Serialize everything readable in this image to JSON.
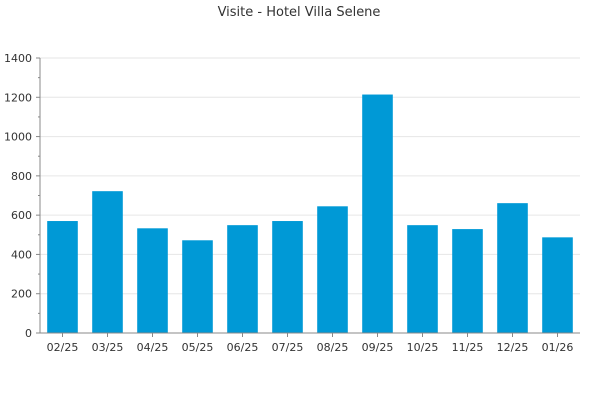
{
  "chart_data": {
    "type": "bar",
    "title": "Visite - Hotel Villa Selene",
    "xlabel": "",
    "ylabel": "",
    "categories": [
      "02/25",
      "03/25",
      "04/25",
      "05/25",
      "06/25",
      "07/25",
      "08/25",
      "09/25",
      "10/25",
      "11/25",
      "12/25",
      "01/26"
    ],
    "values": [
      570,
      722,
      533,
      472,
      549,
      570,
      645,
      1214,
      549,
      529,
      661,
      487
    ],
    "ylim": [
      0,
      1400
    ],
    "yticks": [
      0,
      200,
      400,
      600,
      800,
      1000,
      1200,
      1400
    ],
    "grid": true,
    "legend": "none",
    "bar_color": "#0099d6"
  }
}
